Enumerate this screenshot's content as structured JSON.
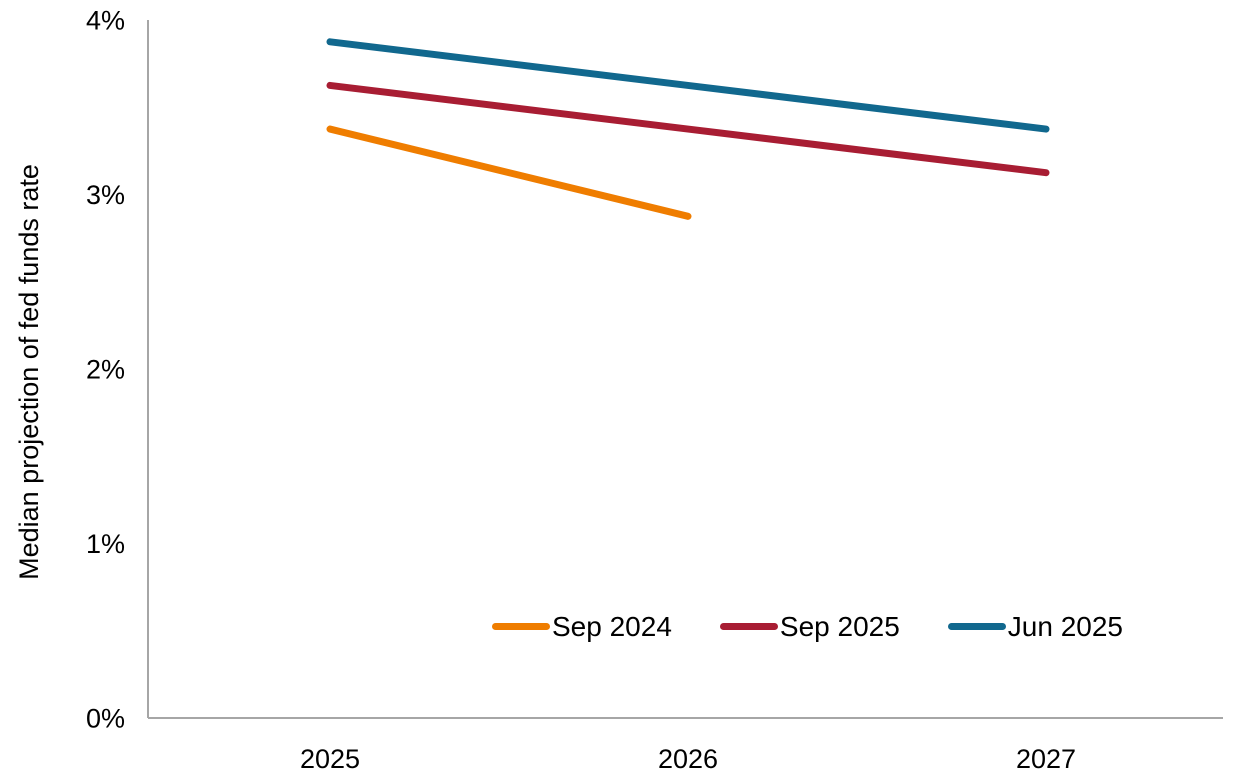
{
  "chart_data": {
    "type": "line",
    "title": "",
    "xlabel": "",
    "ylabel": "Median projection of fed funds rate",
    "x_categories": [
      "2025",
      "2026",
      "2027"
    ],
    "y_ticks": [
      {
        "label": "0%",
        "value": 0
      },
      {
        "label": "1%",
        "value": 1
      },
      {
        "label": "2%",
        "value": 2
      },
      {
        "label": "3%",
        "value": 3
      },
      {
        "label": "4%",
        "value": 4
      }
    ],
    "ylim": [
      0,
      4
    ],
    "grid": false,
    "legend_position": "bottom-center-inside",
    "axis_color": "#A6A6A6",
    "text_color": "#000000",
    "series": [
      {
        "name": "Sep 2024",
        "color": "#EF7D00",
        "x": [
          "2025",
          "2026"
        ],
        "values": [
          3.375,
          2.875
        ]
      },
      {
        "name": "Sep 2025",
        "color": "#A81D33",
        "x": [
          "2025",
          "2026",
          "2027"
        ],
        "values": [
          3.625,
          3.375,
          3.125
        ]
      },
      {
        "name": "Jun 2025",
        "color": "#11688E",
        "x": [
          "2025",
          "2026",
          "2027"
        ],
        "values": [
          3.875,
          3.625,
          3.375
        ]
      }
    ]
  }
}
